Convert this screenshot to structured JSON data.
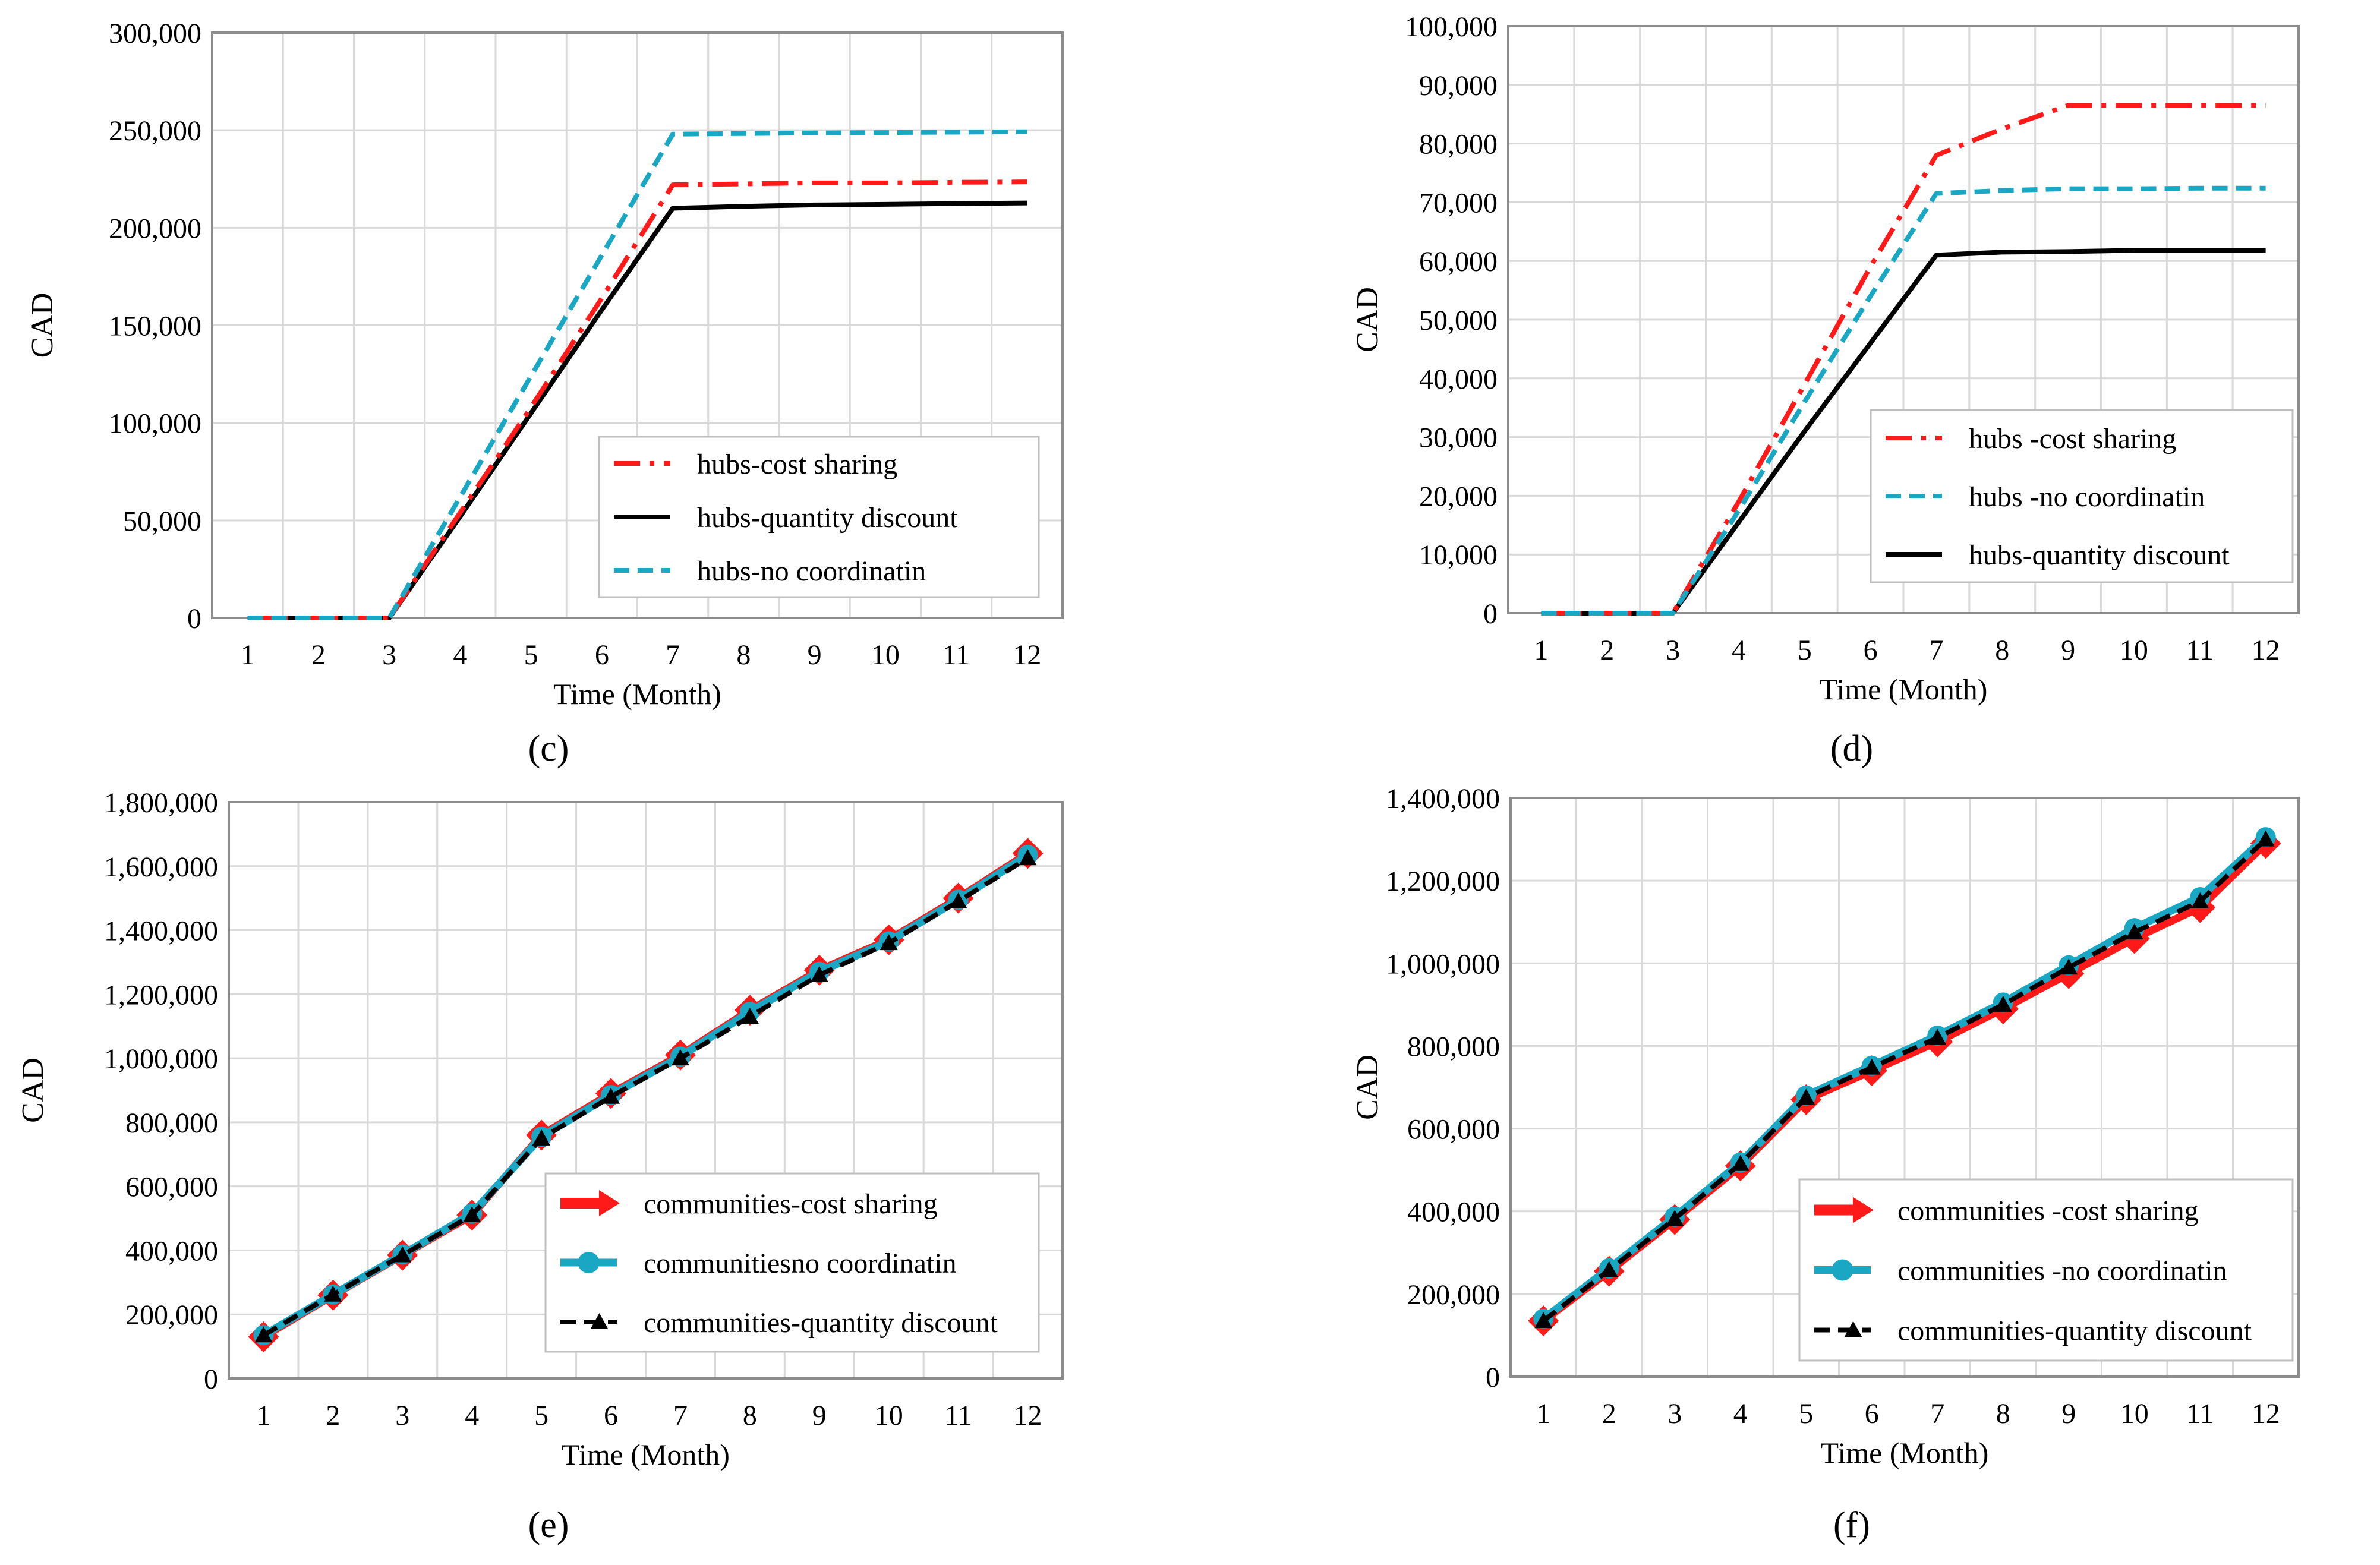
{
  "colors": {
    "cost_sharing": "#ff1a1a",
    "no_coordination": "#1aa7c4",
    "quantity_discount": "#000000",
    "grid": "#d9d9d9",
    "frame": "#8c8c8c"
  },
  "chart_data": [
    {
      "id": "c",
      "panel_label": "(c)",
      "type": "line",
      "title": "",
      "xlabel": "Time (Month)",
      "ylabel": "CAD",
      "x": [
        1,
        2,
        3,
        4,
        5,
        6,
        7,
        8,
        9,
        10,
        11,
        12
      ],
      "xlim": [
        0.5,
        12.5
      ],
      "ylim": [
        0,
        300000
      ],
      "yticks": [
        0,
        50000,
        100000,
        150000,
        200000,
        250000,
        300000
      ],
      "ytick_labels": [
        "0",
        "50,000",
        "100,000",
        "150,000",
        "200,000",
        "250,000",
        "300,000"
      ],
      "legend_position": "bottom-right",
      "series": [
        {
          "key": "cost",
          "name": "hubs-cost sharing",
          "style": "dashdot",
          "color_key": "cost_sharing",
          "marker": "none",
          "values": [
            0,
            0,
            0,
            54000,
            108000,
            164000,
            222000,
            222500,
            223000,
            223000,
            223300,
            223500
          ]
        },
        {
          "key": "qd",
          "name": "hubs-quantity discount",
          "style": "solid",
          "color_key": "quantity_discount",
          "marker": "none",
          "values": [
            0,
            0,
            0,
            52000,
            105000,
            158000,
            210000,
            211000,
            211700,
            212000,
            212400,
            212700
          ]
        },
        {
          "key": "nc",
          "name": "hubs-no coordinatin",
          "style": "dashed",
          "color_key": "no_coordination",
          "marker": "none",
          "values": [
            0,
            0,
            0,
            62000,
            124000,
            186000,
            248000,
            248300,
            248600,
            248800,
            249000,
            249200
          ]
        }
      ]
    },
    {
      "id": "d",
      "panel_label": "(d)",
      "type": "line",
      "title": "",
      "xlabel": "Time (Month)",
      "ylabel": "CAD",
      "x": [
        1,
        2,
        3,
        4,
        5,
        6,
        7,
        8,
        9,
        10,
        11,
        12
      ],
      "xlim": [
        0.5,
        12.5
      ],
      "ylim": [
        0,
        100000
      ],
      "yticks": [
        0,
        10000,
        20000,
        30000,
        40000,
        50000,
        60000,
        70000,
        80000,
        90000,
        100000
      ],
      "ytick_labels": [
        "0",
        "10,000",
        "20,000",
        "30,000",
        "40,000",
        "50,000",
        "60,000",
        "70,000",
        "80,000",
        "90,000",
        "100,000"
      ],
      "legend_position": "bottom-right",
      "series": [
        {
          "key": "cost",
          "name": "hubs -cost sharing",
          "style": "dashdot",
          "color_key": "cost_sharing",
          "marker": "none",
          "values": [
            0,
            0,
            0,
            19000,
            39000,
            59000,
            78000,
            82500,
            86500,
            86500,
            86500,
            86500
          ]
        },
        {
          "key": "nc",
          "name": "hubs -no coordinatin",
          "style": "dashed",
          "color_key": "no_coordination",
          "marker": "none",
          "values": [
            0,
            0,
            0,
            17500,
            36000,
            54000,
            71500,
            72000,
            72300,
            72300,
            72400,
            72400
          ]
        },
        {
          "key": "qd",
          "name": "hubs-quantity discount",
          "style": "solid",
          "color_key": "quantity_discount",
          "marker": "none",
          "values": [
            0,
            0,
            0,
            15500,
            31000,
            46000,
            61000,
            61500,
            61600,
            61800,
            61800,
            61800
          ]
        }
      ]
    },
    {
      "id": "e",
      "panel_label": "(e)",
      "type": "line",
      "title": "",
      "xlabel": "Time (Month)",
      "ylabel": "CAD",
      "x": [
        1,
        2,
        3,
        4,
        5,
        6,
        7,
        8,
        9,
        10,
        11,
        12
      ],
      "xlim": [
        0.5,
        12.5
      ],
      "ylim": [
        0,
        1800000
      ],
      "yticks": [
        0,
        200000,
        400000,
        600000,
        800000,
        1000000,
        1200000,
        1400000,
        1600000,
        1800000
      ],
      "ytick_labels": [
        "0",
        "200,000",
        "400,000",
        "600,000",
        "800,000",
        "1,000,000",
        "1,200,000",
        "1,400,000",
        "1,600,000",
        "1,800,000"
      ],
      "legend_position": "bottom-right",
      "series": [
        {
          "key": "cost",
          "name": "communities-cost sharing",
          "style": "solid-thick",
          "color_key": "cost_sharing",
          "marker": "diamond",
          "values": [
            130000,
            260000,
            385000,
            510000,
            760000,
            890000,
            1010000,
            1150000,
            1275000,
            1370000,
            1500000,
            1640000
          ]
        },
        {
          "key": "nc",
          "name": "communitiesno coordinatin",
          "style": "solid-thick",
          "color_key": "no_coordination",
          "marker": "circle",
          "values": [
            135000,
            262000,
            387000,
            515000,
            755000,
            885000,
            1005000,
            1145000,
            1270000,
            1365000,
            1495000,
            1635000
          ]
        },
        {
          "key": "qd",
          "name": "communities-quantity discount",
          "style": "dashed",
          "color_key": "quantity_discount",
          "marker": "triangle",
          "values": [
            135000,
            262000,
            385000,
            510000,
            750000,
            880000,
            1000000,
            1130000,
            1260000,
            1360000,
            1490000,
            1625000
          ]
        }
      ]
    },
    {
      "id": "f",
      "panel_label": "(f)",
      "type": "line",
      "title": "",
      "xlabel": "Time (Month)",
      "ylabel": "CAD",
      "x": [
        1,
        2,
        3,
        4,
        5,
        6,
        7,
        8,
        9,
        10,
        11,
        12
      ],
      "xlim": [
        0.5,
        12.5
      ],
      "ylim": [
        0,
        1400000
      ],
      "yticks": [
        0,
        200000,
        400000,
        600000,
        800000,
        1000000,
        1200000,
        1400000
      ],
      "ytick_labels": [
        "0",
        "200,000",
        "400,000",
        "600,000",
        "800,000",
        "1,000,000",
        "1,200,000",
        "1,400,000"
      ],
      "legend_position": "bottom-right",
      "series": [
        {
          "key": "cost",
          "name": "communities -cost sharing",
          "style": "solid-thick",
          "color_key": "cost_sharing",
          "marker": "diamond",
          "values": [
            135000,
            255000,
            380000,
            510000,
            670000,
            740000,
            810000,
            890000,
            975000,
            1060000,
            1135000,
            1290000
          ]
        },
        {
          "key": "nc",
          "name": "communities -no coordinatin",
          "style": "solid-thick",
          "color_key": "no_coordination",
          "marker": "circle",
          "values": [
            140000,
            262000,
            387000,
            518000,
            680000,
            752000,
            825000,
            905000,
            995000,
            1085000,
            1160000,
            1305000
          ]
        },
        {
          "key": "qd",
          "name": "communities-quantity discount",
          "style": "dashed",
          "color_key": "quantity_discount",
          "marker": "triangle",
          "values": [
            135000,
            258000,
            382000,
            515000,
            675000,
            748000,
            820000,
            900000,
            990000,
            1075000,
            1150000,
            1300000
          ]
        }
      ]
    }
  ]
}
